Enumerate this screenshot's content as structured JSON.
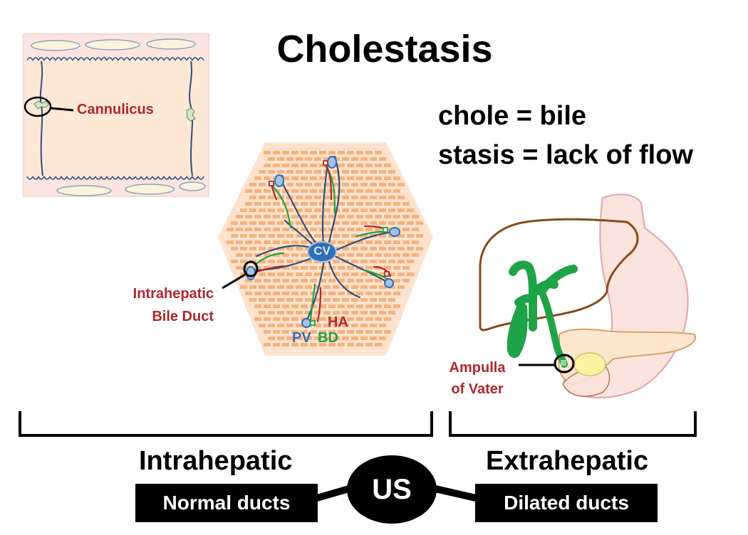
{
  "title": "Cholestasis",
  "definitions": [
    "chole = bile",
    "stasis = lack of flow"
  ],
  "canaliculus_label": "Cannulicus",
  "lobule": {
    "center_label": "CV",
    "duct_label": [
      "Intrahepatic",
      "Bile Duct"
    ],
    "triad": {
      "pv": "PV",
      "bd": "BD",
      "ha": "HA"
    }
  },
  "ampulla_label": [
    "Ampulla",
    "of Vater"
  ],
  "sections": {
    "intrahepatic": {
      "label": "Intrahepatic",
      "finding": "Normal ducts"
    },
    "extrahepatic": {
      "label": "Extrahepatic",
      "finding": "Dilated ducts"
    }
  },
  "test_label": "US",
  "colors": {
    "bile_green": "#1fa347",
    "portal_blue": "#2e6fb8",
    "artery_red": "#b3262b",
    "label_red": "#b3262b",
    "hepatocyte": "#f6b27a",
    "lobule_bg": "#fde3cf"
  }
}
